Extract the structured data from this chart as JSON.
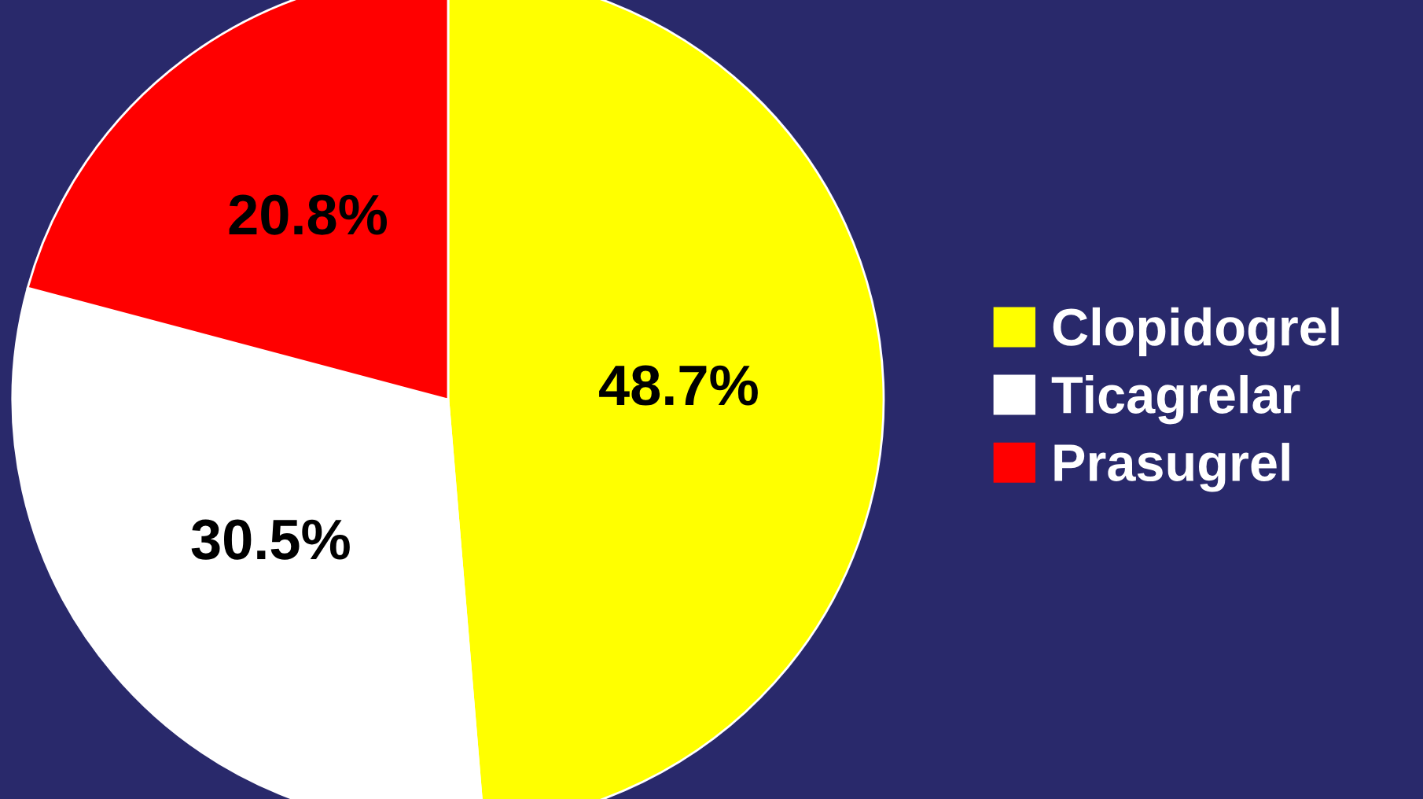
{
  "chart_data": {
    "type": "pie",
    "categories": [
      "Clopidogrel",
      "Ticagrelar",
      "Prasugrel"
    ],
    "values": [
      48.7,
      30.5,
      20.8
    ],
    "colors": [
      "#ffff00",
      "#ffffff",
      "#ff0000"
    ],
    "value_labels": [
      "48.7%",
      "30.5%",
      "20.8%"
    ],
    "legend": "right"
  }
}
